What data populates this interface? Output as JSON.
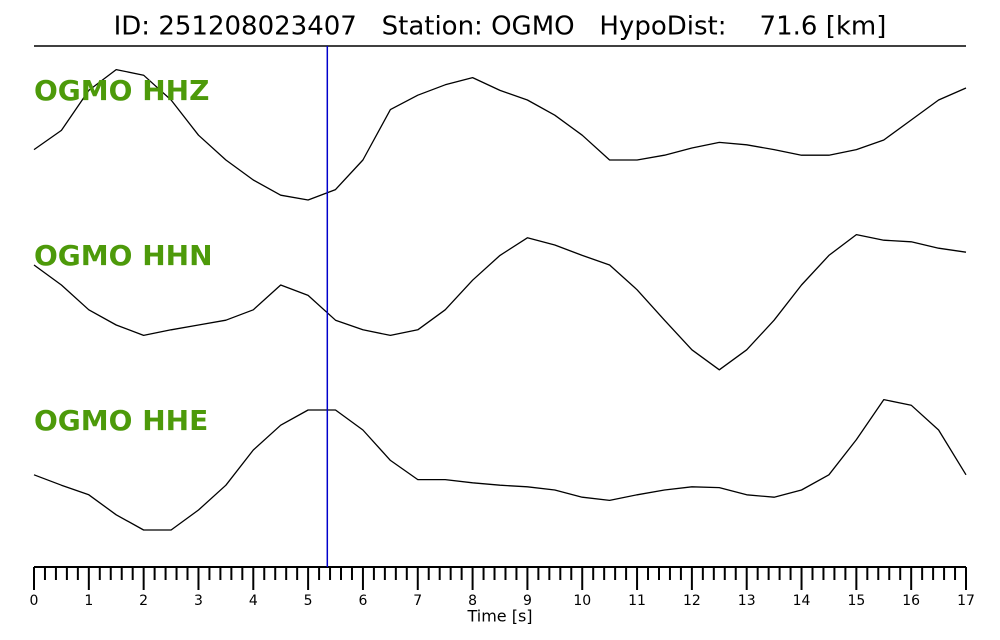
{
  "chart_data": {
    "type": "seismogram",
    "title": "ID: 251208023407   Station: OGMO   HypoDist:    71.6 [km]",
    "xlabel": "Time [s]",
    "xlim": [
      0,
      17
    ],
    "xticks": [
      0,
      1,
      2,
      3,
      4,
      5,
      6,
      7,
      8,
      9,
      10,
      11,
      12,
      13,
      14,
      15,
      16,
      17
    ],
    "xminorticks": [
      0.2,
      0.4,
      0.6,
      0.8,
      1.2,
      1.4,
      1.6,
      1.8,
      2.2,
      2.4,
      2.6,
      2.8,
      3.2,
      3.4,
      3.6,
      3.8,
      4.2,
      4.4,
      4.6,
      4.8,
      5.2,
      5.4,
      5.6,
      5.8,
      6.2,
      6.4,
      6.6,
      6.8,
      7.2,
      7.4,
      7.6,
      7.8,
      8.2,
      8.4,
      8.6,
      8.8,
      9.2,
      9.4,
      9.6,
      9.8,
      10.2,
      10.4,
      10.6,
      10.8,
      11.2,
      11.4,
      11.6,
      11.8,
      12.2,
      12.4,
      12.6,
      12.8,
      13.2,
      13.4,
      13.6,
      13.8,
      14.2,
      14.4,
      14.6,
      14.8,
      15.2,
      15.4,
      15.6,
      15.8,
      16.2,
      16.4,
      16.6,
      16.8
    ],
    "ylim": [
      -1,
      1
    ],
    "pick_x": 5.35,
    "pick_color": "#0000cc",
    "label_color": "#4d9a0a",
    "x": [
      0,
      0.5,
      1,
      1.5,
      2,
      2.5,
      3,
      3.5,
      4,
      4.5,
      5,
      5.5,
      6,
      6.5,
      7,
      7.5,
      8,
      8.5,
      9,
      9.5,
      10,
      10.5,
      11,
      11.5,
      12,
      12.5,
      13,
      13.5,
      14,
      14.5,
      15,
      15.5,
      16,
      16.5,
      17
    ],
    "series": [
      {
        "name": "OGMO HHZ",
        "color": "#000000",
        "values": [
          -0.12,
          0.12,
          0.62,
          0.88,
          0.81,
          0.5,
          0.06,
          -0.25,
          -0.5,
          -0.69,
          -0.75,
          -0.62,
          -0.25,
          0.38,
          0.56,
          0.69,
          0.78,
          0.62,
          0.5,
          0.31,
          0.06,
          -0.25,
          -0.25,
          -0.19,
          -0.1,
          -0.03,
          -0.06,
          -0.12,
          -0.19,
          -0.19,
          -0.12,
          0,
          0.25,
          0.5,
          0.65
        ]
      },
      {
        "name": "OGMO HHN",
        "color": "#000000",
        "values": [
          0.5,
          0.25,
          -0.06,
          -0.25,
          -0.38,
          -0.31,
          -0.25,
          -0.19,
          -0.06,
          0.25,
          0.12,
          -0.19,
          -0.31,
          -0.38,
          -0.31,
          -0.06,
          0.31,
          0.62,
          0.84,
          0.75,
          0.62,
          0.5,
          0.19,
          -0.19,
          -0.56,
          -0.81,
          -0.56,
          -0.19,
          0.25,
          0.62,
          0.88,
          0.81,
          0.79,
          0.71,
          0.66
        ]
      },
      {
        "name": "OGMO HHE",
        "color": "#000000",
        "values": [
          -0.06,
          -0.19,
          -0.31,
          -0.56,
          -0.75,
          -0.75,
          -0.5,
          -0.19,
          0.25,
          0.56,
          0.75,
          0.75,
          0.5,
          0.12,
          -0.12,
          -0.12,
          -0.16,
          -0.19,
          -0.21,
          -0.25,
          -0.34,
          -0.38,
          -0.31,
          -0.25,
          -0.21,
          -0.22,
          -0.31,
          -0.34,
          -0.25,
          -0.06,
          0.38,
          0.88,
          0.81,
          0.5,
          -0.06
        ]
      }
    ]
  }
}
